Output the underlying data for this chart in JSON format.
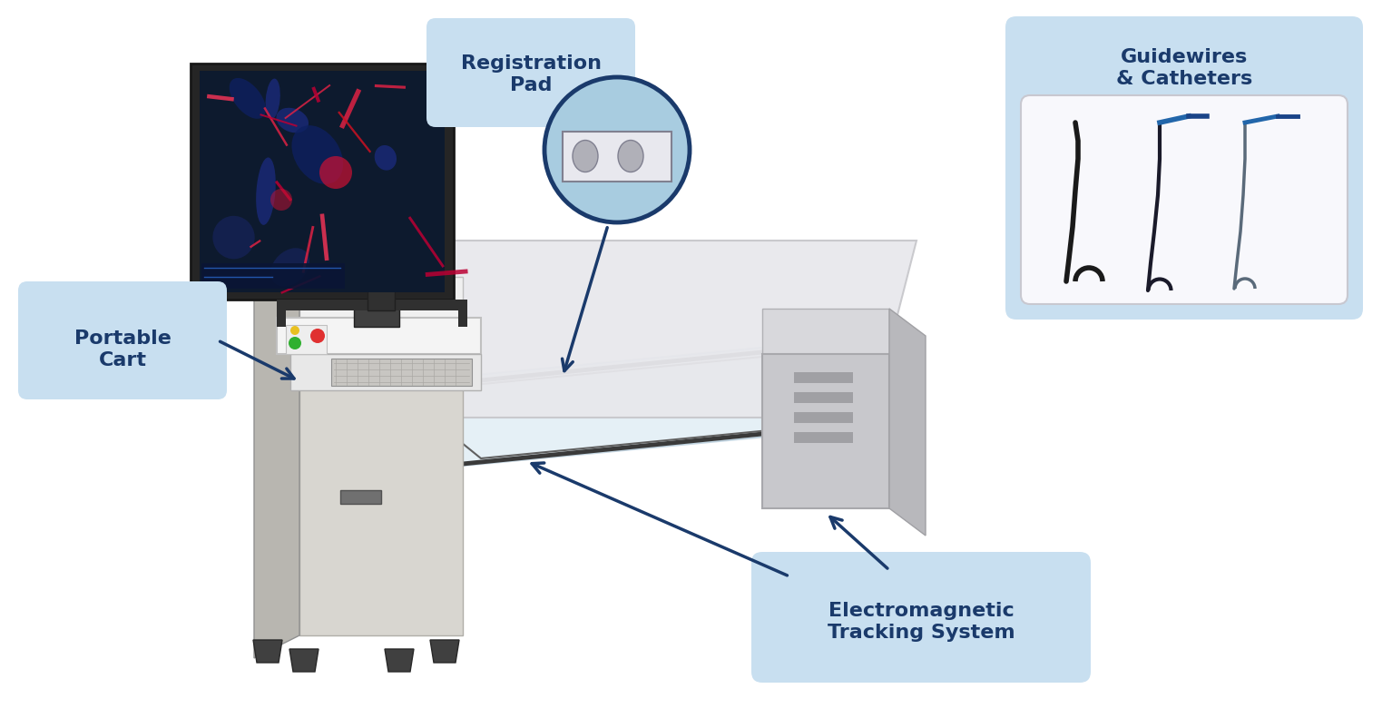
{
  "bg_color": "#ffffff",
  "label_box_color": "#c8dff0",
  "arrow_color": "#1a3a6b",
  "text_color": "#1a3a6b",
  "labels": {
    "portable_cart": "Portable\nCart",
    "registration_pad": "Registration\nPad",
    "guidewires": "Guidewires\n& Catheters",
    "em_tracking": "Electromagnetic\nTracking System"
  },
  "font_size_labels": 16,
  "fig_w": 15.34,
  "fig_h": 8.02,
  "dpi": 100
}
